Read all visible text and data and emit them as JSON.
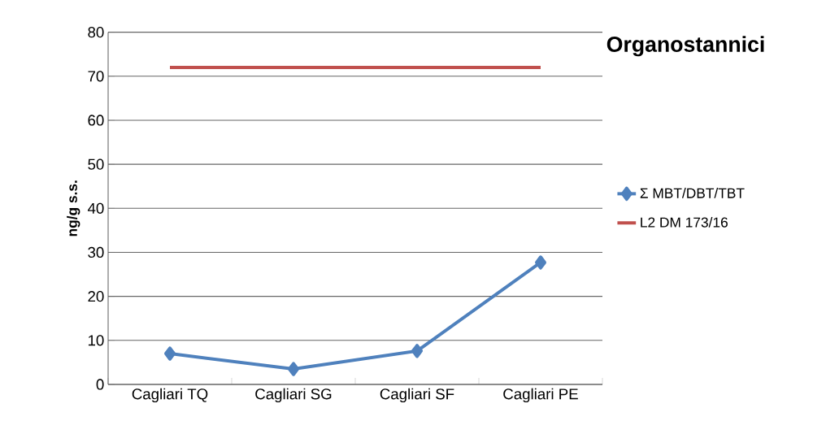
{
  "chart_data": {
    "type": "line",
    "title": "Organostannici",
    "ylabel": "ng/g s.s.",
    "categories": [
      "Cagliari TQ",
      "Cagliari SG",
      "Cagliari SF",
      "Cagliari PE"
    ],
    "series": [
      {
        "name": "Σ MBT/DBT/TBT",
        "color": "#4f81bd",
        "marker": "diamond",
        "values": [
          7.0,
          3.5,
          7.6,
          27.7
        ]
      },
      {
        "name": "L2 DM 173/16",
        "color": "#c0504d",
        "marker": "none",
        "values": [
          72,
          72,
          72,
          72
        ]
      }
    ],
    "ylim": [
      0,
      80
    ],
    "yticks": [
      0,
      10,
      20,
      30,
      40,
      50,
      60,
      70,
      80
    ],
    "grid": "y",
    "legend": "right"
  }
}
